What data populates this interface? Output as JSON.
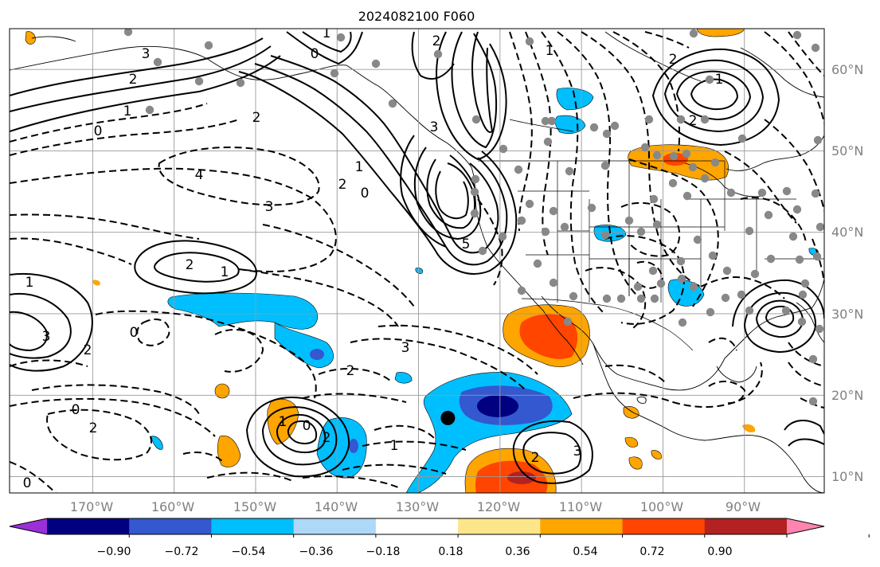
{
  "title": "2024082100 F060",
  "lon_ticks": [
    "170°W",
    "160°W",
    "150°W",
    "140°W",
    "130°W",
    "120°W",
    "110°W",
    "100°W",
    "90°W"
  ],
  "lat_ticks": [
    "60°N",
    "50°N",
    "40°N",
    "30°N",
    "20°N",
    "10°N"
  ],
  "colorbar": {
    "tick_labels": [
      "−0.90",
      "−0.72",
      "−0.54",
      "−0.36",
      "−0.18",
      "0.18",
      "0.36",
      "0.54",
      "0.72",
      "0.90"
    ],
    "colors": [
      "#9b30d9",
      "#000080",
      "#3458cf",
      "#00bfff",
      "#add8f8",
      "#ffffff",
      "#fde68a",
      "#ffa500",
      "#ff4500",
      "#b22222",
      "#ff85b0"
    ]
  },
  "contour_labels": [
    "3",
    "2",
    "1",
    "0",
    "1",
    "2",
    "3",
    "0",
    "2",
    "4",
    "3",
    "2",
    "1",
    "0",
    "5",
    "1",
    "2",
    "3",
    "1",
    "2",
    "0",
    "2",
    "0",
    "1",
    "2",
    "1",
    "0",
    "2",
    "0",
    "2",
    "1",
    "3",
    "2",
    "1",
    "2",
    "3"
  ],
  "marker": {
    "lon": -126.4,
    "lat": 17.2
  }
}
